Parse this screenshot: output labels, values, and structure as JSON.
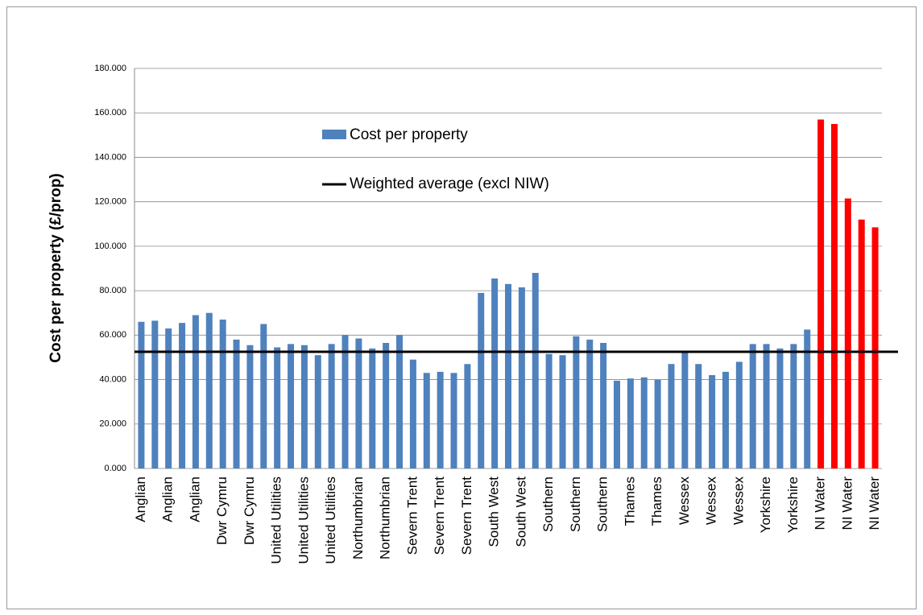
{
  "chart_data": {
    "type": "bar",
    "y_label": "Cost per property (£/prop)",
    "categories": [
      "Anglian",
      null,
      "Anglian",
      null,
      "Anglian",
      null,
      "Dwr Cymru",
      null,
      "Dwr Cymru",
      null,
      "United Utilities",
      null,
      "United Utilities",
      null,
      "United Utilities",
      null,
      "Northumbrian",
      null,
      "Northumbrian",
      null,
      "Severn Trent",
      null,
      "Severn Trent",
      null,
      "Severn Trent",
      null,
      "South West",
      null,
      "South West",
      null,
      "Southern",
      null,
      "Southern",
      null,
      "Southern",
      null,
      "Thames",
      null,
      "Thames",
      null,
      "Wessex",
      null,
      "Wessex",
      null,
      "Wessex",
      null,
      "Yorkshire",
      null,
      "Yorkshire",
      null,
      "NI Water",
      null,
      "NI Water",
      null,
      "NI Water"
    ],
    "series": [
      {
        "name": "Cost per property",
        "color": "#4f81bd",
        "values": [
          66,
          66.5,
          63,
          65.5,
          69,
          70,
          67,
          58,
          55.5,
          65,
          54.5,
          56,
          55.5,
          51,
          56,
          60,
          58.5,
          54,
          56.5,
          60,
          49,
          43,
          43.5,
          43,
          47,
          79,
          85.5,
          83,
          81.5,
          88,
          51.5,
          51,
          59.5,
          58,
          56.5,
          39.5,
          40.5,
          41,
          40,
          47,
          53,
          47,
          42,
          43.5,
          48,
          56,
          56,
          54,
          56,
          62.5,
          157,
          155,
          121.5,
          112,
          108.5
        ],
        "colors": [
          "#4f81bd",
          "#4f81bd",
          "#4f81bd",
          "#4f81bd",
          "#4f81bd",
          "#4f81bd",
          "#4f81bd",
          "#4f81bd",
          "#4f81bd",
          "#4f81bd",
          "#4f81bd",
          "#4f81bd",
          "#4f81bd",
          "#4f81bd",
          "#4f81bd",
          "#4f81bd",
          "#4f81bd",
          "#4f81bd",
          "#4f81bd",
          "#4f81bd",
          "#4f81bd",
          "#4f81bd",
          "#4f81bd",
          "#4f81bd",
          "#4f81bd",
          "#4f81bd",
          "#4f81bd",
          "#4f81bd",
          "#4f81bd",
          "#4f81bd",
          "#4f81bd",
          "#4f81bd",
          "#4f81bd",
          "#4f81bd",
          "#4f81bd",
          "#4f81bd",
          "#4f81bd",
          "#4f81bd",
          "#4f81bd",
          "#4f81bd",
          "#4f81bd",
          "#4f81bd",
          "#4f81bd",
          "#4f81bd",
          "#4f81bd",
          "#4f81bd",
          "#4f81bd",
          "#4f81bd",
          "#4f81bd",
          "#4f81bd",
          "#ff0000",
          "#ff0000",
          "#ff0000",
          "#ff0000",
          "#ff0000"
        ]
      }
    ],
    "reference_line": {
      "name": "Weighted average (excl NIW)",
      "value": 52.5,
      "color": "#000000"
    },
    "ylim": [
      0,
      180
    ],
    "yticks": [
      {
        "value": 0,
        "label": "0.000"
      },
      {
        "value": 20,
        "label": "20.000"
      },
      {
        "value": 40,
        "label": "40.000"
      },
      {
        "value": 60,
        "label": "60.000"
      },
      {
        "value": 80,
        "label": "80.000"
      },
      {
        "value": 100,
        "label": "100.000"
      },
      {
        "value": 120,
        "label": "120.000"
      },
      {
        "value": 140,
        "label": "140.000"
      },
      {
        "value": 160,
        "label": "160.000"
      },
      {
        "value": 180,
        "label": "180.000"
      }
    ],
    "grid": true
  }
}
